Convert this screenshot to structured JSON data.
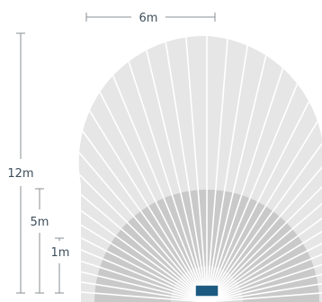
{
  "dimensions": {
    "width_label": "6m",
    "outer_range_label": "12m",
    "middle_range_label": "5m",
    "inner_range_label": "1m"
  },
  "colors": {
    "background": "#ffffff",
    "outer_zone": "#e6e6e6",
    "middle_zone": "#c9c9c9",
    "inner_zone": "#d9d9d9",
    "sensor": "#1d5a82",
    "sensor_outline": "#ffffff",
    "segment_lines": "#ffffff",
    "dimension_lines": "#8a8f93",
    "dimension_text": "#3d4f5c"
  },
  "icons": {
    "sensor": "motion-sensor-icon"
  }
}
